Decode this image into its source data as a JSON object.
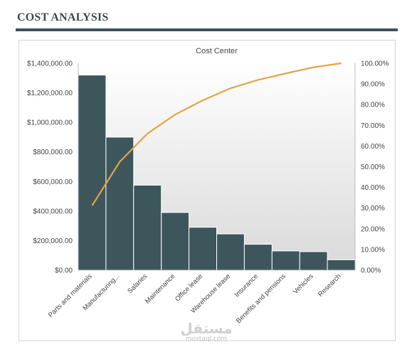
{
  "page": {
    "title": "COST ANALYSIS",
    "watermark_main": "مستقل",
    "watermark_sub": "mostaql.com"
  },
  "colors": {
    "bar": "#3d565c",
    "line": "#e3a446",
    "header_rule": "#3f5358",
    "text": "#444444"
  },
  "chart_data": {
    "type": "bar",
    "title": "Cost Center",
    "categories": [
      "Parts and materials",
      "Manufacturing...",
      "Salaries",
      "Maintenance",
      "Office lease",
      "Warehouse lease",
      "Insurance",
      "Benefits and pensions",
      "Vehicles",
      "Research"
    ],
    "series": [
      {
        "type": "bar",
        "axis": "left",
        "values": [
          1320000,
          900000,
          575000,
          390000,
          290000,
          245000,
          175000,
          130000,
          125000,
          70000
        ]
      },
      {
        "type": "line",
        "axis": "right",
        "values": [
          31.2,
          52.4,
          66.0,
          75.2,
          82.1,
          87.9,
          92.0,
          95.1,
          98.1,
          100.0
        ]
      }
    ],
    "y_left": {
      "range": [
        0,
        1400000
      ],
      "ticks": [
        0,
        200000,
        400000,
        600000,
        800000,
        1000000,
        1200000,
        1400000
      ],
      "tick_labels": [
        "$0.00",
        "$200,000.00",
        "$400,000.00",
        "$600,000.00",
        "$800,000.00",
        "$1,000,000.00",
        "$1,200,000.00",
        "$1,400,000.00"
      ]
    },
    "y_right": {
      "range": [
        0,
        100
      ],
      "ticks": [
        0,
        10,
        20,
        30,
        40,
        50,
        60,
        70,
        80,
        90,
        100
      ],
      "tick_labels": [
        "0.00%",
        "10.00%",
        "20.00%",
        "30.00%",
        "40.00%",
        "50.00%",
        "60.00%",
        "70.00%",
        "80.00%",
        "90.00%",
        "100.00%"
      ]
    },
    "grid": false,
    "legend": "none"
  }
}
